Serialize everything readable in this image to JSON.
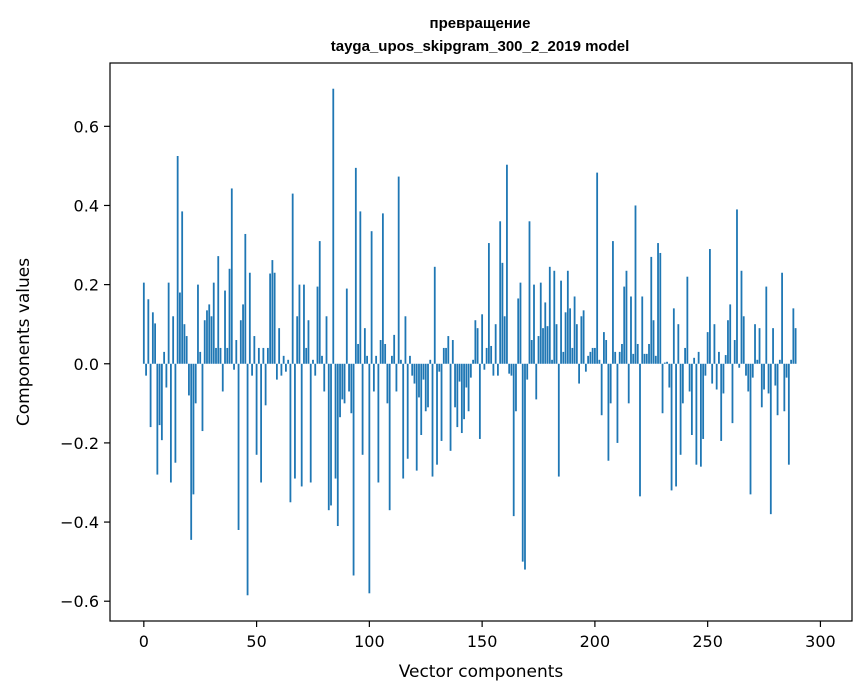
{
  "chart_data": {
    "type": "bar",
    "title": "превращение",
    "subtitle": "tayga_upos_skipgram_300_2_2019 model",
    "xlabel": "Vector components",
    "ylabel": "Components values",
    "xlim": [
      -15,
      314
    ],
    "ylim": [
      -0.65,
      0.76
    ],
    "xticks": [
      0,
      50,
      100,
      150,
      200,
      250,
      300
    ],
    "xtick_labels": [
      "0",
      "50",
      "100",
      "150",
      "200",
      "250",
      "300"
    ],
    "yticks": [
      -0.6,
      -0.4,
      -0.2,
      0.0,
      0.2,
      0.4,
      0.6
    ],
    "ytick_labels": [
      "−0.6",
      "−0.4",
      "−0.2",
      "0.0",
      "0.2",
      "0.4",
      "0.6"
    ],
    "grid": false,
    "x_start": 0,
    "values": [
      0.205,
      -0.03,
      0.163,
      -0.16,
      0.13,
      0.102,
      -0.28,
      -0.155,
      -0.193,
      0.03,
      -0.06,
      0.205,
      -0.3,
      0.12,
      -0.25,
      0.525,
      0.18,
      0.385,
      0.1,
      0.07,
      -0.08,
      -0.445,
      -0.33,
      -0.1,
      0.2,
      0.03,
      -0.17,
      0.11,
      0.135,
      0.15,
      0.12,
      0.205,
      0.04,
      0.272,
      0.04,
      -0.07,
      0.185,
      0.04,
      0.24,
      0.443,
      -0.015,
      0.06,
      -0.42,
      0.11,
      0.15,
      0.328,
      -0.585,
      0.23,
      -0.03,
      0.07,
      -0.23,
      0.04,
      -0.3,
      0.04,
      -0.105,
      0.04,
      0.228,
      0.262,
      0.23,
      -0.04,
      0.09,
      -0.03,
      0.02,
      -0.02,
      0.01,
      -0.35,
      0.43,
      -0.29,
      0.12,
      0.2,
      -0.31,
      0.2,
      0.04,
      0.11,
      -0.3,
      0.01,
      -0.03,
      0.195,
      0.31,
      0.02,
      -0.07,
      0.12,
      -0.37,
      -0.358,
      0.695,
      -0.29,
      -0.41,
      -0.135,
      -0.09,
      -0.1,
      0.19,
      -0.07,
      -0.125,
      -0.535,
      0.495,
      0.05,
      0.385,
      -0.23,
      0.09,
      0.02,
      -0.58,
      0.335,
      -0.07,
      0.02,
      -0.3,
      0.06,
      0.38,
      0.05,
      -0.1,
      -0.37,
      0.02,
      0.073,
      -0.07,
      0.473,
      0.01,
      -0.29,
      0.12,
      -0.24,
      0.02,
      -0.03,
      -0.05,
      -0.27,
      -0.085,
      -0.18,
      -0.04,
      -0.12,
      -0.11,
      0.01,
      -0.285,
      0.245,
      -0.255,
      -0.02,
      -0.195,
      0.04,
      0.04,
      0.07,
      -0.22,
      0.06,
      -0.11,
      -0.16,
      -0.045,
      -0.175,
      -0.14,
      -0.06,
      -0.12,
      -0.035,
      0.01,
      0.11,
      0.09,
      -0.19,
      0.125,
      -0.015,
      0.04,
      0.305,
      0.045,
      -0.03,
      0.1,
      -0.03,
      0.36,
      0.255,
      0.12,
      0.503,
      -0.025,
      -0.03,
      -0.385,
      -0.12,
      0.165,
      0.205,
      -0.5,
      -0.52,
      -0.04,
      0.36,
      0.06,
      0.2,
      -0.09,
      0.07,
      0.205,
      0.09,
      0.155,
      0.095,
      0.245,
      0.01,
      0.235,
      0.1,
      -0.285,
      0.21,
      0.03,
      0.13,
      0.235,
      0.14,
      0.04,
      0.17,
      0.1,
      -0.05,
      0.12,
      0.135,
      -0.02,
      0.02,
      0.03,
      0.04,
      0.04,
      0.483,
      0.01,
      -0.13,
      0.08,
      0.06,
      -0.245,
      -0.1,
      0.31,
      0.03,
      -0.2,
      0.03,
      0.05,
      0.195,
      0.235,
      -0.1,
      0.17,
      0.025,
      0.4,
      0.05,
      -0.335,
      0.17,
      0.025,
      0.025,
      0.05,
      0.27,
      0.11,
      0.02,
      0.305,
      0.28,
      -0.125,
      0.003,
      0.005,
      -0.06,
      -0.32,
      0.14,
      -0.31,
      0.1,
      -0.23,
      -0.1,
      0.04,
      0.22,
      -0.07,
      -0.18,
      0.015,
      -0.255,
      0.03,
      -0.26,
      -0.19,
      -0.03,
      0.08,
      0.29,
      -0.05,
      0.1,
      -0.065,
      0.03,
      -0.195,
      -0.075,
      0.022,
      0.11,
      0.15,
      -0.15,
      0.06,
      0.39,
      -0.01,
      0.235,
      0.12,
      -0.03,
      -0.07,
      -0.33,
      -0.035,
      0.1,
      0.01,
      0.09,
      -0.11,
      -0.065,
      0.195,
      -0.075,
      -0.38,
      0.09,
      -0.055,
      -0.13,
      0.01,
      0.23,
      -0.12,
      -0.035,
      -0.255,
      0.01,
      0.14,
      0.09
    ]
  }
}
